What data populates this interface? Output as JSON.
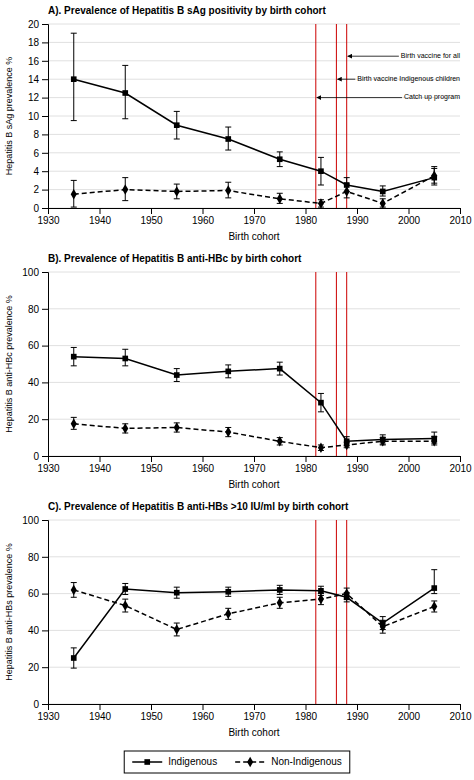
{
  "chart_data": [
    {
      "type": "line",
      "title": "A). Prevalence of Hepatitis B sAg positivity by birth cohort",
      "x_label": "Birth cohort",
      "y_label": "Hepatitis B sAg prevalence %",
      "xlim": [
        1930,
        2010
      ],
      "xticks": [
        1930,
        1940,
        1950,
        1960,
        1970,
        1980,
        1990,
        2000,
        2010
      ],
      "ylim": [
        0,
        20
      ],
      "yticks": [
        0,
        2,
        4,
        6,
        8,
        10,
        12,
        14,
        16,
        18,
        20
      ],
      "grid": "y",
      "legend": "bottom",
      "x": [
        1935,
        1945,
        1955,
        1965,
        1975,
        1983,
        1988,
        1995,
        2005
      ],
      "vlines": [
        {
          "x": 1982,
          "color": "#cc0000"
        },
        {
          "x": 1986,
          "color": "#cc0000"
        },
        {
          "x": 1988,
          "color": "#cc0000"
        }
      ],
      "series": [
        {
          "name": "Indigenous",
          "color": "#000000",
          "marker": "square",
          "line_style": "solid",
          "values": [
            14.0,
            12.5,
            9.0,
            7.5,
            5.3,
            4.0,
            2.5,
            1.8,
            3.3
          ],
          "error_low": [
            4.5,
            2.8,
            1.5,
            1.2,
            0.8,
            1.5,
            0.7,
            0.5,
            0.8
          ],
          "error_high": [
            5.0,
            3.0,
            1.5,
            1.3,
            0.8,
            1.5,
            0.8,
            0.6,
            1.0
          ]
        },
        {
          "name": "Non-Indigenous",
          "color": "#000000",
          "marker": "diamond",
          "line_style": "dashed",
          "values": [
            1.5,
            2.0,
            1.8,
            1.9,
            1.0,
            0.5,
            1.8,
            0.5,
            3.5
          ],
          "error_low": [
            1.4,
            1.2,
            0.8,
            0.8,
            0.5,
            0.4,
            0.7,
            0.4,
            0.8
          ],
          "error_high": [
            1.5,
            1.3,
            0.8,
            0.9,
            0.6,
            0.4,
            0.8,
            0.5,
            1.0
          ]
        }
      ],
      "annotations": [
        {
          "text": "Birth vaccine for all",
          "x": 1988,
          "y": 16.5,
          "text_x": 2010,
          "text_y": 16.5
        },
        {
          "text": "Birth vaccine Indigenous children",
          "x": 1986,
          "y": 14.0,
          "text_x": 2010,
          "text_y": 14.0
        },
        {
          "text": "Catch up program",
          "x": 1982,
          "y": 12.0,
          "text_x": 2010,
          "text_y": 12.0
        }
      ]
    },
    {
      "type": "line",
      "title": "B). Prevalence of Hepatitis B anti-HBc by birth cohort",
      "x_label": "Birth cohort",
      "y_label": "Hepatitis B anti-HBc prevalence %",
      "xlim": [
        1930,
        2010
      ],
      "xticks": [
        1930,
        1940,
        1950,
        1960,
        1970,
        1980,
        1990,
        2000,
        2010
      ],
      "ylim": [
        0,
        100
      ],
      "yticks": [
        0,
        20,
        40,
        60,
        80,
        100
      ],
      "grid": "y",
      "x": [
        1935,
        1945,
        1955,
        1965,
        1975,
        1983,
        1988,
        1995,
        2005
      ],
      "vlines": [
        {
          "x": 1982,
          "color": "#cc0000"
        },
        {
          "x": 1986,
          "color": "#cc0000"
        },
        {
          "x": 1988,
          "color": "#cc0000"
        }
      ],
      "series": [
        {
          "name": "Indigenous",
          "color": "#000000",
          "marker": "square",
          "line_style": "solid",
          "values": [
            54.0,
            53.0,
            44.0,
            46.0,
            47.5,
            29.0,
            8.0,
            9.0,
            9.5
          ],
          "error_low": [
            5.0,
            4.0,
            3.5,
            3.5,
            3.5,
            5.0,
            2.5,
            2.5,
            2.5
          ],
          "error_high": [
            5.0,
            5.0,
            3.5,
            3.5,
            3.5,
            5.0,
            2.5,
            2.5,
            3.5
          ]
        },
        {
          "name": "Non-Indigenous",
          "color": "#000000",
          "marker": "diamond",
          "line_style": "dashed",
          "values": [
            17.5,
            15.0,
            15.5,
            13.0,
            8.0,
            4.5,
            6.0,
            8.0,
            8.0
          ],
          "error_low": [
            3.0,
            2.5,
            2.5,
            2.5,
            2.0,
            1.5,
            1.5,
            2.0,
            2.0
          ],
          "error_high": [
            3.5,
            2.5,
            2.5,
            2.5,
            2.0,
            1.5,
            1.5,
            2.0,
            2.5
          ]
        }
      ]
    },
    {
      "type": "line",
      "title": "C). Prevalence of Hepatitis B anti-HBs >10 IU/ml by birth cohort",
      "x_label": "Birth cohort",
      "y_label": "Hepatitis B anti-HBs prevalence %",
      "xlim": [
        1930,
        2010
      ],
      "xticks": [
        1930,
        1940,
        1950,
        1960,
        1970,
        1980,
        1990,
        2000,
        2010
      ],
      "ylim": [
        0,
        100
      ],
      "yticks": [
        0,
        20,
        40,
        60,
        80,
        100
      ],
      "grid": "y",
      "x": [
        1935,
        1945,
        1955,
        1965,
        1975,
        1983,
        1988,
        1995,
        2005
      ],
      "vlines": [
        {
          "x": 1982,
          "color": "#cc0000"
        },
        {
          "x": 1986,
          "color": "#cc0000"
        },
        {
          "x": 1988,
          "color": "#cc0000"
        }
      ],
      "series": [
        {
          "name": "Indigenous",
          "color": "#000000",
          "marker": "square",
          "line_style": "solid",
          "values": [
            25.0,
            62.5,
            60.5,
            61.0,
            62.0,
            61.5,
            58.0,
            44.0,
            63.0
          ],
          "error_low": [
            5.5,
            3.0,
            3.0,
            2.5,
            2.5,
            2.5,
            2.5,
            3.5,
            3.0
          ],
          "error_high": [
            5.5,
            3.0,
            3.0,
            2.5,
            2.5,
            2.5,
            2.5,
            3.5,
            10.0
          ]
        },
        {
          "name": "Non-Indigenous",
          "color": "#000000",
          "marker": "diamond",
          "line_style": "dashed",
          "values": [
            62.0,
            53.5,
            40.5,
            49.0,
            55.0,
            57.0,
            60.0,
            42.0,
            53.0
          ],
          "error_low": [
            4.0,
            3.5,
            3.5,
            3.0,
            3.0,
            3.0,
            3.0,
            3.5,
            3.0
          ],
          "error_high": [
            4.0,
            3.5,
            3.5,
            3.0,
            3.0,
            3.0,
            3.0,
            3.5,
            3.0
          ]
        }
      ]
    }
  ]
}
